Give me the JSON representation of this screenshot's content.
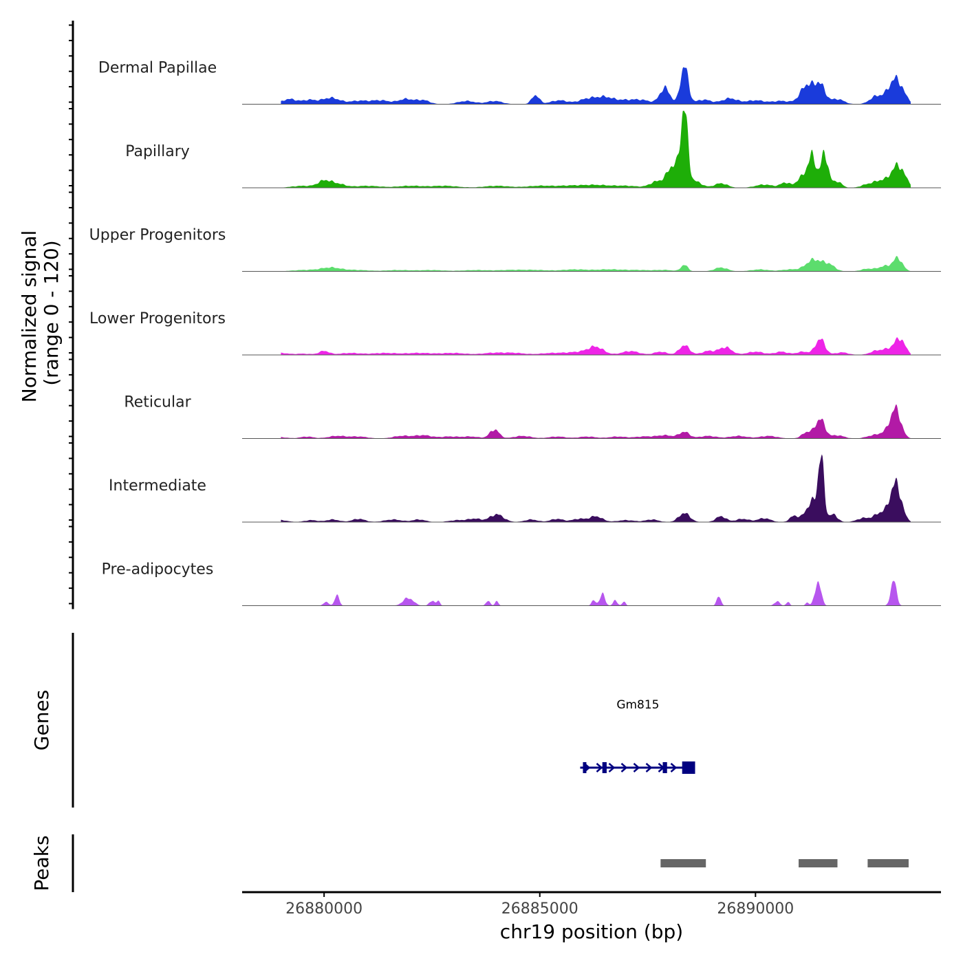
{
  "chart_data": {
    "type": "area",
    "title": "",
    "xlabel": "chr19 position (bp)",
    "ylabel": "Normalized signal",
    "ylabel_sub": "(range 0 - 120)",
    "ylim": [
      0,
      120
    ],
    "xlim": [
      26878100,
      26894300
    ],
    "x_ticks": [
      26880000,
      26885000,
      26890000
    ],
    "x_tick_labels": [
      "26880000",
      "26885000",
      "26890000"
    ],
    "tracks": [
      {
        "name": "Dermal Papillae",
        "color": "#1A3BDB",
        "peaks": [
          [
            26879200,
            8,
            180
          ],
          [
            26879650,
            6,
            150
          ],
          [
            26880150,
            10,
            220
          ],
          [
            26880800,
            5,
            200
          ],
          [
            26881300,
            6,
            220
          ],
          [
            26881900,
            8,
            180
          ],
          [
            26882300,
            6,
            150
          ],
          [
            26883300,
            5,
            200
          ],
          [
            26883950,
            5,
            180
          ],
          [
            26884900,
            14,
            90
          ],
          [
            26885450,
            6,
            200
          ],
          [
            26886100,
            8,
            200
          ],
          [
            26886500,
            10,
            200
          ],
          [
            26887000,
            6,
            250
          ],
          [
            26887400,
            5,
            200
          ],
          [
            26887900,
            25,
            120
          ],
          [
            26888350,
            60,
            90
          ],
          [
            26888800,
            7,
            180
          ],
          [
            26889400,
            9,
            180
          ],
          [
            26890000,
            6,
            220
          ],
          [
            26890600,
            5,
            200
          ],
          [
            26891200,
            30,
            160
          ],
          [
            26891500,
            28,
            120
          ],
          [
            26891900,
            8,
            150
          ],
          [
            26892800,
            12,
            150
          ],
          [
            26893250,
            40,
            170
          ]
        ]
      },
      {
        "name": "Papillary",
        "color": "#1EAE08",
        "peaks": [
          [
            26879500,
            3,
            250
          ],
          [
            26880000,
            10,
            150
          ],
          [
            26880300,
            6,
            180
          ],
          [
            26881000,
            3,
            300
          ],
          [
            26882000,
            3,
            300
          ],
          [
            26882800,
            3,
            300
          ],
          [
            26884000,
            3,
            300
          ],
          [
            26885000,
            3,
            300
          ],
          [
            26885700,
            3,
            300
          ],
          [
            26886300,
            4,
            300
          ],
          [
            26887000,
            3,
            300
          ],
          [
            26887700,
            9,
            150
          ],
          [
            26888100,
            35,
            150
          ],
          [
            26888350,
            115,
            80
          ],
          [
            26888600,
            10,
            150
          ],
          [
            26889200,
            7,
            150
          ],
          [
            26890200,
            5,
            200
          ],
          [
            26890700,
            8,
            120
          ],
          [
            26891050,
            15,
            100
          ],
          [
            26891300,
            50,
            100
          ],
          [
            26891600,
            52,
            90
          ],
          [
            26891900,
            10,
            100
          ],
          [
            26892600,
            5,
            150
          ],
          [
            26892900,
            10,
            150
          ],
          [
            26893300,
            35,
            160
          ]
        ]
      },
      {
        "name": "Upper Progenitors",
        "color": "#5CDD6D",
        "peaks": [
          [
            26879500,
            2,
            250
          ],
          [
            26880150,
            6,
            250
          ],
          [
            26880800,
            2,
            250
          ],
          [
            26881700,
            2,
            300
          ],
          [
            26882500,
            2,
            300
          ],
          [
            26883500,
            2,
            300
          ],
          [
            26884300,
            2,
            300
          ],
          [
            26884900,
            2,
            300
          ],
          [
            26885800,
            3,
            300
          ],
          [
            26886600,
            3,
            300
          ],
          [
            26887300,
            2,
            300
          ],
          [
            26887900,
            2,
            200
          ],
          [
            26888350,
            10,
            80
          ],
          [
            26889200,
            6,
            150
          ],
          [
            26890100,
            3,
            200
          ],
          [
            26890800,
            3,
            200
          ],
          [
            26891350,
            18,
            180
          ],
          [
            26891700,
            10,
            140
          ],
          [
            26892600,
            4,
            150
          ],
          [
            26893000,
            8,
            150
          ],
          [
            26893300,
            20,
            110
          ]
        ]
      },
      {
        "name": "Lower Progenitors",
        "color": "#EE24E7",
        "peaks": [
          [
            26879000,
            3,
            150
          ],
          [
            26879500,
            2,
            200
          ],
          [
            26880000,
            6,
            120
          ],
          [
            26880600,
            3,
            250
          ],
          [
            26881400,
            3,
            300
          ],
          [
            26882200,
            3,
            300
          ],
          [
            26883000,
            3,
            300
          ],
          [
            26883900,
            3,
            250
          ],
          [
            26884400,
            3,
            250
          ],
          [
            26885300,
            3,
            300
          ],
          [
            26885900,
            4,
            250
          ],
          [
            26886300,
            12,
            180
          ],
          [
            26887100,
            6,
            200
          ],
          [
            26887800,
            5,
            150
          ],
          [
            26888350,
            15,
            120
          ],
          [
            26888900,
            6,
            150
          ],
          [
            26889300,
            12,
            150
          ],
          [
            26890000,
            5,
            200
          ],
          [
            26890600,
            5,
            150
          ],
          [
            26891100,
            5,
            150
          ],
          [
            26891500,
            25,
            110
          ],
          [
            26892000,
            4,
            150
          ],
          [
            26892800,
            6,
            150
          ],
          [
            26893100,
            8,
            150
          ],
          [
            26893350,
            24,
            120
          ]
        ]
      },
      {
        "name": "Reticular",
        "color": "#B21AA6",
        "peaks": [
          [
            26879000,
            2,
            150
          ],
          [
            26879600,
            3,
            150
          ],
          [
            26880300,
            4,
            200
          ],
          [
            26880800,
            3,
            200
          ],
          [
            26881800,
            4,
            200
          ],
          [
            26882300,
            5,
            200
          ],
          [
            26882900,
            3,
            200
          ],
          [
            26883400,
            3,
            200
          ],
          [
            26883950,
            14,
            110
          ],
          [
            26884600,
            4,
            200
          ],
          [
            26885400,
            3,
            200
          ],
          [
            26886100,
            3,
            200
          ],
          [
            26886800,
            3,
            200
          ],
          [
            26887400,
            3,
            200
          ],
          [
            26887900,
            5,
            200
          ],
          [
            26888350,
            10,
            120
          ],
          [
            26888900,
            4,
            200
          ],
          [
            26889600,
            4,
            200
          ],
          [
            26890300,
            4,
            200
          ],
          [
            26891200,
            10,
            120
          ],
          [
            26891500,
            30,
            110
          ],
          [
            26891900,
            5,
            150
          ],
          [
            26892700,
            4,
            150
          ],
          [
            26893000,
            8,
            150
          ],
          [
            26893250,
            45,
            120
          ]
        ]
      },
      {
        "name": "Intermediate",
        "color": "#3A0D5E",
        "peaks": [
          [
            26879000,
            3,
            150
          ],
          [
            26879700,
            3,
            150
          ],
          [
            26880200,
            4,
            150
          ],
          [
            26880800,
            5,
            150
          ],
          [
            26881600,
            4,
            200
          ],
          [
            26882200,
            4,
            150
          ],
          [
            26883100,
            3,
            200
          ],
          [
            26883500,
            5,
            150
          ],
          [
            26884000,
            12,
            160
          ],
          [
            26884800,
            4,
            150
          ],
          [
            26885400,
            5,
            150
          ],
          [
            26885900,
            5,
            150
          ],
          [
            26886300,
            9,
            150
          ],
          [
            26887000,
            3,
            200
          ],
          [
            26887600,
            4,
            150
          ],
          [
            26888350,
            14,
            130
          ],
          [
            26889200,
            9,
            120
          ],
          [
            26889700,
            5,
            150
          ],
          [
            26890200,
            6,
            150
          ],
          [
            26890900,
            10,
            100
          ],
          [
            26891200,
            18,
            100
          ],
          [
            26891350,
            25,
            80
          ],
          [
            26891520,
            100,
            70
          ],
          [
            26891800,
            12,
            100
          ],
          [
            26892500,
            6,
            150
          ],
          [
            26892900,
            14,
            150
          ],
          [
            26893250,
            60,
            130
          ]
        ]
      },
      {
        "name": "Pre-adipocytes",
        "color": "#B756EE",
        "peaks": [
          [
            26880050,
            6,
            60
          ],
          [
            26880300,
            18,
            50
          ],
          [
            26881950,
            12,
            120
          ],
          [
            26882500,
            8,
            60
          ],
          [
            26882650,
            7,
            40
          ],
          [
            26883800,
            7,
            50
          ],
          [
            26884000,
            7,
            40
          ],
          [
            26886250,
            8,
            50
          ],
          [
            26886450,
            18,
            60
          ],
          [
            26886750,
            8,
            50
          ],
          [
            26886950,
            6,
            40
          ],
          [
            26889150,
            14,
            50
          ],
          [
            26890500,
            7,
            60
          ],
          [
            26890750,
            6,
            40
          ],
          [
            26891200,
            5,
            40
          ],
          [
            26891450,
            38,
            70
          ],
          [
            26893200,
            40,
            65
          ]
        ]
      }
    ],
    "genes": [
      {
        "name": "Gm815",
        "start": 26886000,
        "end": 26888550,
        "strand": "+",
        "color": "#000080",
        "exons": [
          [
            26886000,
            26886050
          ],
          [
            26886450,
            26886550
          ],
          [
            26887850,
            26887950
          ],
          [
            26888300,
            26888600
          ]
        ]
      }
    ],
    "genes_label": "Genes",
    "peaks_label": "Peaks",
    "peak_regions": [
      [
        26887800,
        26888850
      ],
      [
        26891000,
        26891900
      ],
      [
        26892600,
        26893550
      ]
    ],
    "peak_color": "#666666"
  }
}
